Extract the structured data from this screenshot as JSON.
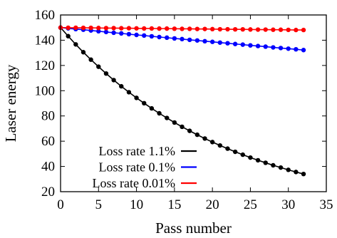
{
  "chart_data": {
    "type": "line",
    "title": "",
    "xlabel": "Pass number",
    "ylabel": "Laser energy",
    "xlim": [
      0,
      35
    ],
    "ylim": [
      20,
      160
    ],
    "xticks": [
      0,
      5,
      10,
      15,
      20,
      25,
      30,
      35
    ],
    "yticks": [
      20,
      40,
      60,
      80,
      100,
      120,
      140,
      160
    ],
    "grid": false,
    "legend_position": "bottom-left",
    "markers": true,
    "x": [
      0,
      1,
      2,
      3,
      4,
      5,
      6,
      7,
      8,
      9,
      10,
      11,
      12,
      13,
      14,
      15,
      16,
      17,
      18,
      19,
      20,
      21,
      22,
      23,
      24,
      25,
      26,
      27,
      28,
      29,
      30,
      31,
      32
    ],
    "series": [
      {
        "name": "Loss rate 1.1%",
        "color": "#000000",
        "values": [
          150,
          143.2,
          136.7,
          130.5,
          124.6,
          119,
          113.6,
          108.4,
          103.5,
          98.8,
          94.3,
          90.1,
          86,
          82.1,
          78.4,
          74.8,
          71.4,
          68.2,
          65.1,
          62.1,
          59.3,
          56.6,
          54.1,
          51.6,
          49.3,
          47,
          44.9,
          42.9,
          40.9,
          39.1,
          37.3,
          35.6,
          34
        ]
      },
      {
        "name": "Loss rate 0.1%",
        "color": "#0000ff",
        "values": [
          150,
          149.4,
          148.8,
          148.3,
          147.7,
          147.1,
          146.5,
          145.9,
          145.4,
          144.8,
          144.2,
          143.7,
          143.1,
          142.5,
          142,
          141.4,
          140.9,
          140.3,
          139.8,
          139.2,
          138.7,
          138.1,
          137.6,
          137,
          136.5,
          135.9,
          135.4,
          134.9,
          134.3,
          133.8,
          133.3,
          132.8,
          132.2
        ]
      },
      {
        "name": "Loss rate 0.01%",
        "color": "#ff0000",
        "values": [
          150,
          149.9,
          149.9,
          149.8,
          149.8,
          149.7,
          149.6,
          149.6,
          149.5,
          149.5,
          149.4,
          149.3,
          149.3,
          149.2,
          149.2,
          149.1,
          149,
          149,
          148.9,
          148.9,
          148.8,
          148.7,
          148.7,
          148.6,
          148.6,
          148.5,
          148.4,
          148.4,
          148.3,
          148.3,
          148.2,
          148.1,
          148.1
        ]
      }
    ]
  }
}
